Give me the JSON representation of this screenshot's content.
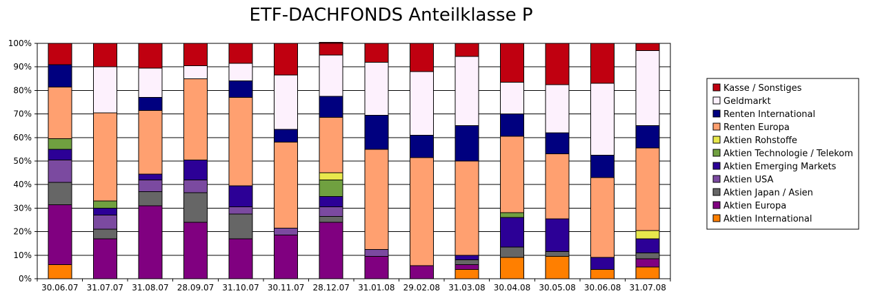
{
  "chart_data": {
    "type": "bar",
    "stacked": true,
    "title": "ETF-DACHFONDS Anteilklasse P",
    "xlabel": "",
    "ylabel": "",
    "ylim": [
      0,
      100
    ],
    "yticks": [
      "0%",
      "10%",
      "20%",
      "30%",
      "40%",
      "50%",
      "60%",
      "70%",
      "80%",
      "90%",
      "100%"
    ],
    "grid": true,
    "legend_position": "right",
    "categories": [
      "30.06.07",
      "31.07.07",
      "31.08.07",
      "28.09.07",
      "31.10.07",
      "30.11.07",
      "28.12.07",
      "31.01.08",
      "29.02.08",
      "31.03.08",
      "30.04.08",
      "30.05.08",
      "30.06.08",
      "31.07.08"
    ],
    "series": [
      {
        "name": "Aktien International",
        "color": "#ff7f00",
        "values": [
          6,
          0,
          0,
          0,
          0,
          0,
          0,
          0,
          0,
          4,
          9,
          9.5,
          4,
          5
        ]
      },
      {
        "name": "Aktien Europa",
        "color": "#800080",
        "values": [
          25.5,
          17,
          31,
          24,
          17,
          18.5,
          24,
          9.5,
          5.5,
          2,
          0,
          0,
          0,
          3.5
        ]
      },
      {
        "name": "Aktien Japan / Asien",
        "color": "#666666",
        "values": [
          9.5,
          4,
          6,
          12.5,
          10.5,
          0,
          2.5,
          0,
          0,
          2,
          4.5,
          2,
          0,
          2.5
        ]
      },
      {
        "name": "Aktien USA",
        "color": "#7b4aa0",
        "values": [
          9.5,
          6,
          5,
          5.5,
          3,
          3,
          4,
          3,
          0,
          0,
          0,
          0,
          0,
          0
        ]
      },
      {
        "name": "Aktien Emerging Markets",
        "color": "#2c0096",
        "values": [
          4.5,
          3,
          2.5,
          8.5,
          9,
          0,
          4.5,
          0,
          0,
          2,
          12.5,
          14,
          5,
          6
        ]
      },
      {
        "name": "Aktien Technologie / Telekom",
        "color": "#70a040",
        "values": [
          4.5,
          3,
          0,
          0,
          0,
          0,
          7,
          0,
          0,
          0,
          2,
          0,
          0,
          0
        ]
      },
      {
        "name": "Aktien Rohstoffe",
        "color": "#e8e84c",
        "values": [
          0,
          0,
          0,
          0,
          0,
          0,
          3,
          0,
          0,
          0,
          0,
          0,
          0,
          3.5
        ]
      },
      {
        "name": "Renten Europa",
        "color": "#ffa070",
        "values": [
          22,
          37.5,
          27,
          34.5,
          37.5,
          36.5,
          23.5,
          42.5,
          46,
          40,
          32.5,
          27.5,
          34,
          35
        ]
      },
      {
        "name": "Renten International",
        "color": "#00007f",
        "values": [
          9.5,
          0,
          5.5,
          0,
          7,
          5.5,
          9,
          14.5,
          9.5,
          15,
          9.5,
          9,
          9.5,
          9.5
        ]
      },
      {
        "name": "Geldmarkt",
        "color": "#fdf1fd",
        "values": [
          0,
          19.5,
          12.5,
          5.5,
          7.5,
          23,
          17.5,
          22.5,
          27,
          29.5,
          13.5,
          20.5,
          30.5,
          32
        ]
      },
      {
        "name": "Kasse / Sonstiges",
        "color": "#c00010",
        "values": [
          9,
          10,
          10.5,
          9.5,
          8.5,
          13.5,
          5.5,
          8,
          12,
          5.5,
          16.5,
          17.5,
          17,
          3
        ]
      }
    ]
  }
}
